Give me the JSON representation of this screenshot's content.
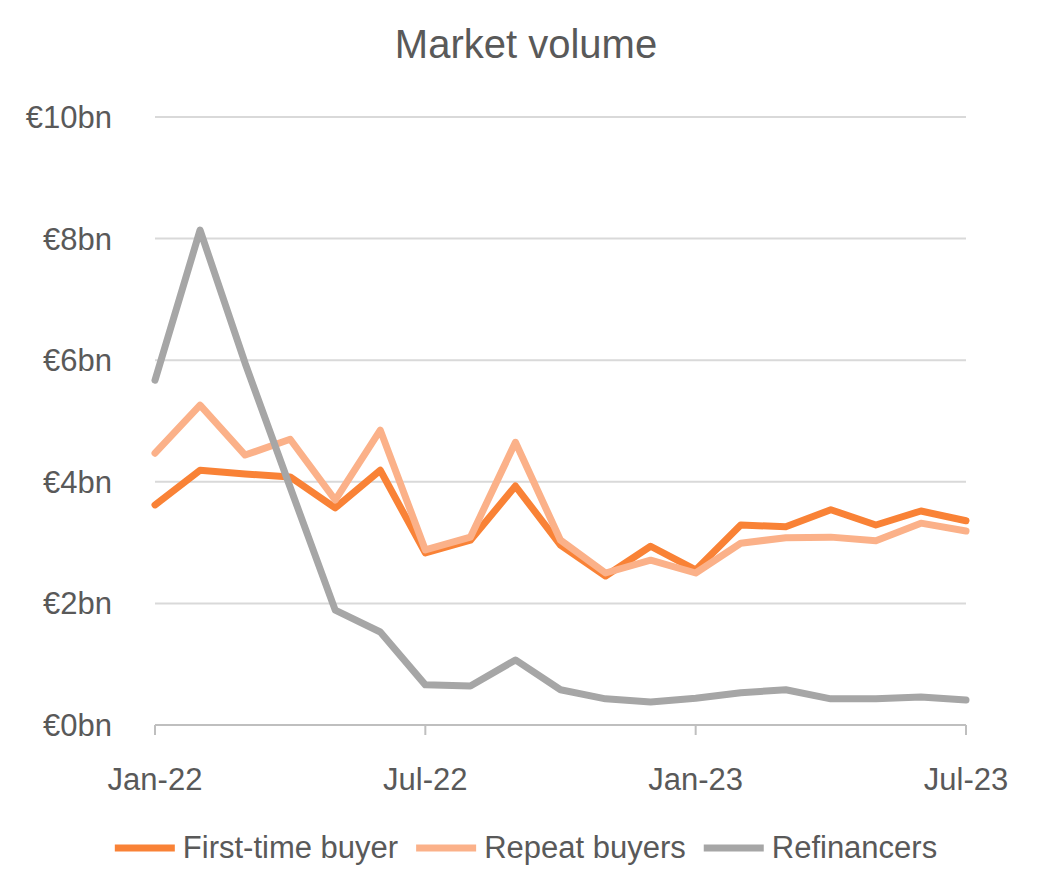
{
  "chart_data": {
    "type": "line",
    "title": "Market volume",
    "categories": [
      "Jan-22",
      null,
      null,
      null,
      null,
      null,
      "Jul-22",
      null,
      null,
      null,
      null,
      null,
      "Jan-23",
      null,
      null,
      null,
      null,
      null,
      "Jul-23"
    ],
    "series": [
      {
        "name": "First-time buyer",
        "color": "#f98236",
        "values": [
          3.62,
          4.19,
          4.13,
          4.08,
          3.57,
          4.19,
          2.83,
          3.04,
          3.93,
          2.96,
          2.45,
          2.94,
          2.55,
          3.29,
          3.26,
          3.54,
          3.29,
          3.52,
          3.36
        ]
      },
      {
        "name": "Repeat buyers",
        "color": "#fbb189",
        "values": [
          4.47,
          5.26,
          4.44,
          4.7,
          3.7,
          4.85,
          2.88,
          3.09,
          4.65,
          3.04,
          2.5,
          2.71,
          2.5,
          2.99,
          3.08,
          3.09,
          3.03,
          3.32,
          3.19
        ]
      },
      {
        "name": "Refinancers",
        "color": "#a6a6a6",
        "values": [
          5.67,
          8.14,
          5.95,
          3.91,
          1.89,
          1.53,
          0.66,
          0.64,
          1.07,
          0.58,
          0.43,
          0.38,
          0.44,
          0.53,
          0.58,
          0.43,
          0.43,
          0.46,
          0.41
        ]
      }
    ],
    "ylim": [
      0,
      10
    ],
    "yticks": [
      {
        "value": 0,
        "label": "€0bn"
      },
      {
        "value": 2,
        "label": "€2bn"
      },
      {
        "value": 4,
        "label": "€4bn"
      },
      {
        "value": 6,
        "label": "€6bn"
      },
      {
        "value": 8,
        "label": "€8bn"
      },
      {
        "value": 10,
        "label": "€10bn"
      }
    ],
    "grid": true,
    "legend": "bottom"
  }
}
